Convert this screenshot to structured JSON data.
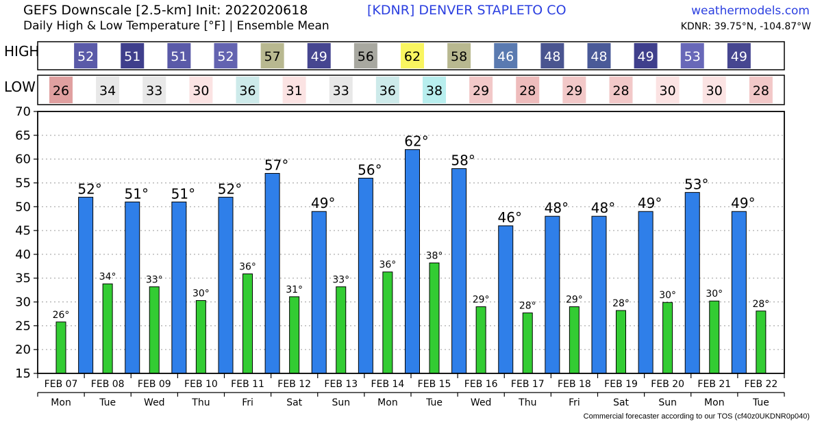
{
  "header": {
    "title_line1": "GEFS Downscale [2.5-km] Init: 2022020618",
    "title_line2": "Daily High & Low Temperature [°F] | Ensemble Mean",
    "station": "[KDNR]   DENVER STAPLETO CO",
    "site": "weathermodels.com",
    "coords": "KDNR: 39.75°N, -104.87°W"
  },
  "footer": {
    "credit": "Commercial forecaster according to our TOS (cf40z0UKDNR0p040)"
  },
  "table": {
    "high_label": "HIGH",
    "low_label": "LOW"
  },
  "colors": {
    "high_bar": "#2f7fe9",
    "low_bar": "#33cc33"
  },
  "chart_data": {
    "type": "bar",
    "categories": [
      "FEB 07",
      "FEB 08",
      "FEB 09",
      "FEB 10",
      "FEB 11",
      "FEB 12",
      "FEB 13",
      "FEB 14",
      "FEB 15",
      "FEB 16",
      "FEB 17",
      "FEB 18",
      "FEB 19",
      "FEB 20",
      "FEB 21",
      "FEB 22"
    ],
    "weekdays": [
      "Mon",
      "Tue",
      "Wed",
      "Thu",
      "Fri",
      "Sat",
      "Sun",
      "Mon",
      "Tue",
      "Wed",
      "Thu",
      "Fri",
      "Sat",
      "Sun",
      "Mon",
      "Tue"
    ],
    "series": [
      {
        "values": [
          null,
          52,
          51,
          51,
          52,
          57,
          49,
          56,
          62,
          58,
          46,
          48,
          48,
          49,
          53,
          49
        ],
        "table_values": [
          "52",
          "51",
          "51",
          "52",
          "57",
          "49",
          "56",
          "62",
          "58",
          "46",
          "48",
          "48",
          "49",
          "53",
          "49"
        ],
        "table_colors": [
          "#5a5aa8",
          "#3f3f8c",
          "#5a5aa8",
          "#6363b0",
          "#b8b890",
          "#464690",
          "#a8a8a0",
          "#f9f560",
          "#b8b890",
          "#5a7ab0",
          "#4a5590",
          "#4a5a98",
          "#3f3f8c",
          "#6868b8",
          "#464690"
        ]
      },
      {
        "values": [
          25.8,
          33.8,
          33.2,
          30.3,
          35.9,
          31.1,
          33.2,
          36.3,
          38.2,
          29,
          27.7,
          29,
          28.2,
          29.9,
          30.2,
          28.1
        ],
        "table_values": [
          "26",
          "34",
          "33",
          "30",
          "36",
          "31",
          "33",
          "36",
          "38",
          "29",
          "28",
          "29",
          "28",
          "30",
          "30",
          "28"
        ],
        "table_colors": [
          "#e0a0a0",
          "#e8e8e8",
          "#e8e8e8",
          "#fbe3e3",
          "#cdeaea",
          "#fbe3e3",
          "#e8e8e8",
          "#cdeaea",
          "#b8eeee",
          "#f2c8c8",
          "#eebcbc",
          "#f2c8c8",
          "#f2c8c8",
          "#fbe3e3",
          "#fbe3e3",
          "#f2c8c8"
        ]
      }
    ],
    "high_labels": [
      "",
      "52°",
      "51°",
      "51°",
      "52°",
      "57°",
      "49°",
      "56°",
      "62°",
      "58°",
      "46°",
      "48°",
      "48°",
      "49°",
      "53°",
      "49°"
    ],
    "low_labels": [
      "26°",
      "34°",
      "33°",
      "30°",
      "36°",
      "31°",
      "33°",
      "36°",
      "38°",
      "29°",
      "28°",
      "29°",
      "28°",
      "30°",
      "30°",
      "28°"
    ],
    "yticks": [
      "15",
      "20",
      "25",
      "30",
      "35",
      "40",
      "45",
      "50",
      "55",
      "60",
      "65",
      "70"
    ],
    "ylim": [
      15,
      70
    ],
    "grid": true
  }
}
